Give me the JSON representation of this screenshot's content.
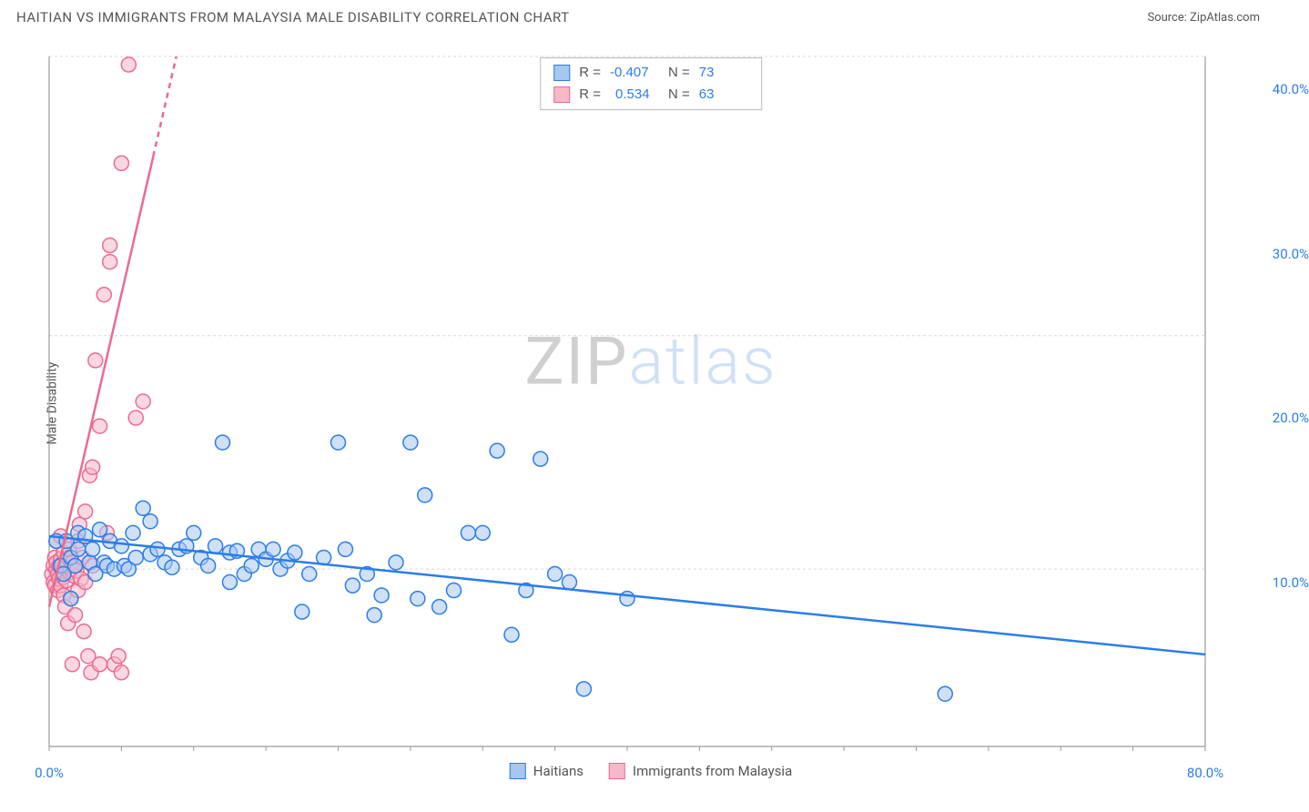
{
  "header": {
    "title": "HAITIAN VS IMMIGRANTS FROM MALAYSIA MALE DISABILITY CORRELATION CHART",
    "source": "Source: ZipAtlas.com"
  },
  "y_axis": {
    "label": "Male Disability"
  },
  "watermark": {
    "part1": "ZIP",
    "part2": "atlas"
  },
  "chart": {
    "type": "scatter",
    "background_color": "#ffffff",
    "grid_color": "#d8d8d8",
    "axis_color": "#999999",
    "tick_label_color": "#2b7de9",
    "label_color": "#555555",
    "title_fontsize": 15,
    "tick_fontsize": 15,
    "label_fontsize": 14,
    "xlim": [
      0,
      80
    ],
    "ylim": [
      0,
      42
    ],
    "x_ticks": [
      {
        "v": 0,
        "l": "0.0%"
      },
      {
        "v": 80,
        "l": "80.0%"
      }
    ],
    "y_ticks": [
      {
        "v": 10,
        "l": "10.0%"
      },
      {
        "v": 20,
        "l": "20.0%"
      },
      {
        "v": 30,
        "l": "30.0%"
      },
      {
        "v": 40,
        "l": "40.0%"
      }
    ],
    "y_gridlines": [
      10.8,
      25,
      42
    ],
    "x_gridlines_minor_step": 5,
    "marker_radius": 8,
    "marker_stroke_width": 1.5,
    "trend_line_width": 2.5,
    "series": [
      {
        "name": "Haitians",
        "fill": "#a7c7f0",
        "stroke": "#2b7de9",
        "fill_opacity": 0.55,
        "trend": {
          "x1": 0,
          "y1": 12.8,
          "x2": 80,
          "y2": 5.6,
          "color": "#2b7de9",
          "dash": ""
        },
        "stats": {
          "R": "-0.407",
          "N": "73"
        },
        "points": [
          [
            0.5,
            12.5
          ],
          [
            0.8,
            11.0
          ],
          [
            1.0,
            10.5
          ],
          [
            1.2,
            12.5
          ],
          [
            1.5,
            9.0
          ],
          [
            1.5,
            11.5
          ],
          [
            1.8,
            11.0
          ],
          [
            2.0,
            12.0
          ],
          [
            2.0,
            13.0
          ],
          [
            2.5,
            12.8
          ],
          [
            2.8,
            11.2
          ],
          [
            3.0,
            12.0
          ],
          [
            3.2,
            10.5
          ],
          [
            3.5,
            13.2
          ],
          [
            3.8,
            11.2
          ],
          [
            4.0,
            11.0
          ],
          [
            4.2,
            12.5
          ],
          [
            4.5,
            10.8
          ],
          [
            5.0,
            12.2
          ],
          [
            5.2,
            11.0
          ],
          [
            5.5,
            10.8
          ],
          [
            5.8,
            13.0
          ],
          [
            6.0,
            11.5
          ],
          [
            6.5,
            14.5
          ],
          [
            7.0,
            11.7
          ],
          [
            7.0,
            13.7
          ],
          [
            7.5,
            12.0
          ],
          [
            8.0,
            11.2
          ],
          [
            8.5,
            10.9
          ],
          [
            9.0,
            12.0
          ],
          [
            9.5,
            12.2
          ],
          [
            10.0,
            13.0
          ],
          [
            10.5,
            11.5
          ],
          [
            11.0,
            11.0
          ],
          [
            11.5,
            12.2
          ],
          [
            12.0,
            18.5
          ],
          [
            12.5,
            11.8
          ],
          [
            12.5,
            10.0
          ],
          [
            13.0,
            11.9
          ],
          [
            13.5,
            10.5
          ],
          [
            14.0,
            11.0
          ],
          [
            14.5,
            12.0
          ],
          [
            15.0,
            11.4
          ],
          [
            15.5,
            12.0
          ],
          [
            16.0,
            10.8
          ],
          [
            16.5,
            11.3
          ],
          [
            17.0,
            11.8
          ],
          [
            17.5,
            8.2
          ],
          [
            18.0,
            10.5
          ],
          [
            19.0,
            11.5
          ],
          [
            20.0,
            18.5
          ],
          [
            20.5,
            12.0
          ],
          [
            21.0,
            9.8
          ],
          [
            22.0,
            10.5
          ],
          [
            22.5,
            8.0
          ],
          [
            23.0,
            9.2
          ],
          [
            24.0,
            11.2
          ],
          [
            25.0,
            18.5
          ],
          [
            25.5,
            9.0
          ],
          [
            26.0,
            15.3
          ],
          [
            27.0,
            8.5
          ],
          [
            28.0,
            9.5
          ],
          [
            29.0,
            13.0
          ],
          [
            30.0,
            13.0
          ],
          [
            31.0,
            18.0
          ],
          [
            32.0,
            6.8
          ],
          [
            33.0,
            9.5
          ],
          [
            34.0,
            17.5
          ],
          [
            35.0,
            10.5
          ],
          [
            36.0,
            10.0
          ],
          [
            37.0,
            3.5
          ],
          [
            62.0,
            3.2
          ],
          [
            40.0,
            9.0
          ]
        ]
      },
      {
        "name": "Immigrants from Malaysia",
        "fill": "#f7b8c8",
        "stroke": "#ec6a8f",
        "fill_opacity": 0.55,
        "trend": {
          "x1": 0,
          "y1": 8.5,
          "x2": 8.8,
          "y2": 42,
          "color": "#ec6a8f",
          "dash": "",
          "dash_after_x": 7.2
        },
        "stats": {
          "R": "0.534",
          "N": "63"
        },
        "points": [
          [
            0.2,
            10.5
          ],
          [
            0.3,
            11.0
          ],
          [
            0.3,
            10.0
          ],
          [
            0.4,
            11.5
          ],
          [
            0.4,
            9.8
          ],
          [
            0.5,
            10.8
          ],
          [
            0.5,
            11.2
          ],
          [
            0.5,
            12.5
          ],
          [
            0.6,
            10.5
          ],
          [
            0.6,
            9.5
          ],
          [
            0.7,
            11.0
          ],
          [
            0.7,
            10.2
          ],
          [
            0.8,
            11.4
          ],
          [
            0.8,
            9.8
          ],
          [
            0.8,
            12.8
          ],
          [
            0.9,
            10.7
          ],
          [
            0.9,
            11.1
          ],
          [
            1.0,
            10.3
          ],
          [
            1.0,
            11.8
          ],
          [
            1.0,
            9.2
          ],
          [
            1.1,
            8.5
          ],
          [
            1.1,
            10.9
          ],
          [
            1.2,
            11.3
          ],
          [
            1.2,
            10.1
          ],
          [
            1.3,
            7.5
          ],
          [
            1.3,
            11.5
          ],
          [
            1.4,
            10.6
          ],
          [
            1.4,
            12.0
          ],
          [
            1.5,
            9.0
          ],
          [
            1.5,
            10.8
          ],
          [
            1.6,
            11.2
          ],
          [
            1.6,
            5.0
          ],
          [
            1.7,
            10.4
          ],
          [
            1.8,
            8.0
          ],
          [
            1.8,
            11.0
          ],
          [
            1.9,
            10.7
          ],
          [
            2.0,
            12.5
          ],
          [
            2.0,
            9.5
          ],
          [
            2.1,
            13.5
          ],
          [
            2.2,
            10.2
          ],
          [
            2.3,
            11.5
          ],
          [
            2.4,
            7.0
          ],
          [
            2.5,
            14.3
          ],
          [
            2.5,
            10.0
          ],
          [
            2.7,
            5.5
          ],
          [
            2.8,
            16.5
          ],
          [
            2.9,
            4.5
          ],
          [
            3.0,
            17.0
          ],
          [
            3.0,
            11.0
          ],
          [
            3.2,
            23.5
          ],
          [
            3.5,
            19.5
          ],
          [
            3.8,
            27.5
          ],
          [
            4.0,
            13.0
          ],
          [
            4.2,
            29.5
          ],
          [
            4.2,
            30.5
          ],
          [
            4.5,
            5.0
          ],
          [
            5.0,
            35.5
          ],
          [
            5.0,
            4.5
          ],
          [
            5.5,
            41.5
          ],
          [
            6.0,
            20.0
          ],
          [
            6.5,
            21.0
          ],
          [
            4.8,
            5.5
          ],
          [
            3.5,
            5.0
          ]
        ]
      }
    ]
  },
  "top_legend": {
    "r_label": "R =",
    "n_label": "N ="
  },
  "bottom_legend": {
    "items": [
      "Haitians",
      "Immigrants from Malaysia"
    ]
  }
}
